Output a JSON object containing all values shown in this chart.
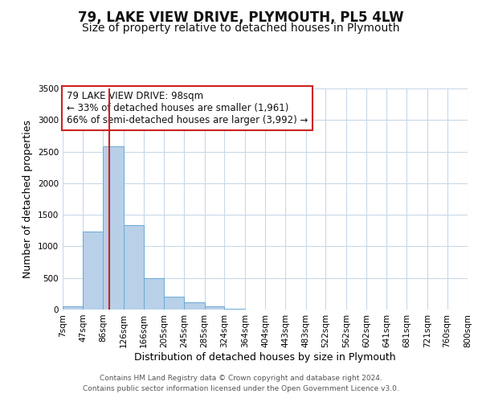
{
  "title": "79, LAKE VIEW DRIVE, PLYMOUTH, PL5 4LW",
  "subtitle": "Size of property relative to detached houses in Plymouth",
  "xlabel": "Distribution of detached houses by size in Plymouth",
  "ylabel": "Number of detached properties",
  "bar_color": "#b8d0e8",
  "bar_edge_color": "#6aaad4",
  "background_color": "#ffffff",
  "grid_color": "#c8d8ea",
  "annotation_box_color": "#ffffff",
  "annotation_box_edge": "#cc2222",
  "vline_color": "#cc2222",
  "vline_x": 98,
  "bin_edges": [
    7,
    47,
    86,
    126,
    166,
    205,
    245,
    285,
    324,
    364,
    404,
    443,
    483,
    522,
    562,
    602,
    641,
    681,
    721,
    760,
    800
  ],
  "bin_labels": [
    "7sqm",
    "47sqm",
    "86sqm",
    "126sqm",
    "166sqm",
    "205sqm",
    "245sqm",
    "285sqm",
    "324sqm",
    "364sqm",
    "404sqm",
    "443sqm",
    "483sqm",
    "522sqm",
    "562sqm",
    "602sqm",
    "641sqm",
    "681sqm",
    "721sqm",
    "760sqm",
    "800sqm"
  ],
  "bar_heights": [
    50,
    1240,
    2580,
    1340,
    500,
    200,
    110,
    45,
    10,
    5,
    2,
    1,
    0,
    0,
    0,
    0,
    0,
    0,
    0,
    5
  ],
  "ylim": [
    0,
    3500
  ],
  "yticks": [
    0,
    500,
    1000,
    1500,
    2000,
    2500,
    3000,
    3500
  ],
  "annotation_title": "79 LAKE VIEW DRIVE: 98sqm",
  "annotation_line1": "← 33% of detached houses are smaller (1,961)",
  "annotation_line2": "66% of semi-detached houses are larger (3,992) →",
  "footer1": "Contains HM Land Registry data © Crown copyright and database right 2024.",
  "footer2": "Contains public sector information licensed under the Open Government Licence v3.0.",
  "title_fontsize": 12,
  "subtitle_fontsize": 10,
  "axis_label_fontsize": 9,
  "tick_fontsize": 7.5,
  "annotation_fontsize": 8.5,
  "footer_fontsize": 6.5
}
